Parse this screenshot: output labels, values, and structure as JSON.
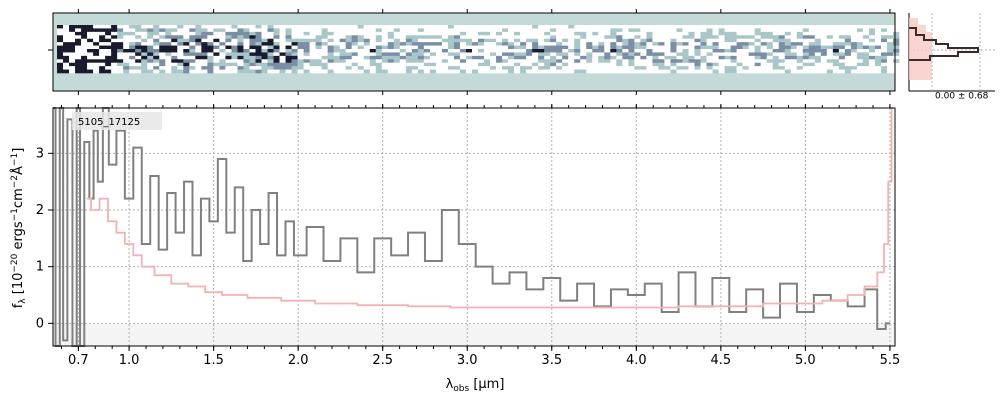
{
  "chart_data": [
    {
      "type": "heatmap",
      "panel": "2d-spectrum",
      "colormap": [
        "#c3dad9",
        "#ffffff",
        "#1a1a2e"
      ]
    },
    {
      "type": "line",
      "panel": "1d-spectrum",
      "object_label": "5105_17125",
      "xlabel_main": "λ",
      "xlabel_sub": "obs",
      "xlabel_unit": " [μm]",
      "ylabel": "f_λ [10^-20 ergs^-1 cm^-2 Å^-1]",
      "ylabel_parts": {
        "f": "f",
        "f_sub": "λ",
        "bracket_open": " [10",
        "exp1": "−20",
        "t1": " ergs",
        "exp2": "−1",
        "t2": "cm",
        "exp3": "−2",
        "t3": "Å",
        "exp4": "−1",
        "bracket_close": "]"
      },
      "xlim": [
        0.55,
        5.53
      ],
      "ylim": [
        -0.4,
        3.8
      ],
      "x_tick_labels": [
        "0.7",
        "1.0",
        "1.5",
        "2.0",
        "2.5",
        "3.0",
        "3.5",
        "4.0",
        "4.5",
        "5.0",
        "5.5"
      ],
      "x_ticks": [
        0.7,
        1.0,
        1.5,
        2.0,
        2.5,
        3.0,
        3.5,
        4.0,
        4.5,
        5.0,
        5.5
      ],
      "y_ticks": [
        0,
        1,
        2,
        3
      ],
      "y_tick_labels": [
        "0",
        "1",
        "2",
        "3"
      ],
      "grid": true,
      "series": [
        {
          "color": "#808080",
          "x": [
            0.55,
            0.58,
            0.6,
            0.62,
            0.65,
            0.68,
            0.7,
            0.72,
            0.75,
            0.78,
            0.8,
            0.83,
            0.86,
            0.9,
            0.95,
            1.0,
            1.05,
            1.1,
            1.15,
            1.2,
            1.25,
            1.3,
            1.35,
            1.4,
            1.45,
            1.5,
            1.55,
            1.6,
            1.65,
            1.7,
            1.75,
            1.8,
            1.85,
            1.9,
            1.95,
            2.0,
            2.1,
            2.2,
            2.3,
            2.4,
            2.5,
            2.6,
            2.7,
            2.8,
            2.9,
            3.0,
            3.1,
            3.2,
            3.3,
            3.4,
            3.5,
            3.6,
            3.7,
            3.8,
            3.9,
            4.0,
            4.1,
            4.2,
            4.3,
            4.4,
            4.5,
            4.6,
            4.7,
            4.8,
            4.9,
            5.0,
            5.1,
            5.2,
            5.3,
            5.4,
            5.45,
            5.5
          ],
          "y": [
            3.8,
            -0.4,
            3.8,
            -0.3,
            3.6,
            -0.4,
            3.8,
            -0.4,
            3.2,
            2.2,
            3.4,
            2.5,
            3.8,
            2.8,
            3.4,
            2.2,
            3.1,
            1.4,
            2.6,
            1.3,
            2.3,
            1.6,
            2.5,
            1.2,
            2.2,
            1.8,
            2.9,
            1.6,
            2.4,
            1.1,
            2.0,
            1.4,
            2.3,
            1.2,
            1.8,
            1.2,
            1.7,
            1.1,
            1.5,
            0.9,
            1.5,
            1.2,
            1.6,
            1.1,
            2.0,
            1.4,
            1.0,
            0.7,
            0.9,
            0.6,
            0.8,
            0.4,
            0.7,
            0.3,
            0.6,
            0.5,
            0.7,
            0.2,
            0.9,
            0.3,
            0.8,
            0.2,
            0.6,
            0.1,
            0.7,
            0.2,
            0.5,
            0.4,
            0.3,
            0.6,
            -0.1,
            0.0
          ]
        },
        {
          "color": "#f4b3b0",
          "x": [
            0.75,
            0.8,
            0.85,
            0.9,
            0.95,
            1.0,
            1.05,
            1.1,
            1.2,
            1.3,
            1.4,
            1.5,
            1.6,
            1.8,
            2.0,
            2.2,
            2.5,
            2.8,
            3.0,
            3.5,
            4.0,
            4.5,
            5.0,
            5.2,
            5.3,
            5.4,
            5.45,
            5.48,
            5.5,
            5.52
          ],
          "y": [
            2.2,
            2.0,
            2.2,
            1.8,
            1.6,
            1.4,
            1.2,
            1.0,
            0.85,
            0.7,
            0.65,
            0.55,
            0.5,
            0.45,
            0.4,
            0.35,
            0.32,
            0.3,
            0.28,
            0.28,
            0.28,
            0.3,
            0.35,
            0.4,
            0.5,
            0.65,
            0.9,
            1.4,
            2.5,
            3.8
          ]
        }
      ]
    },
    {
      "type": "histogram",
      "panel": "flux-histogram",
      "label": "0.00 ± 0.68"
    }
  ]
}
